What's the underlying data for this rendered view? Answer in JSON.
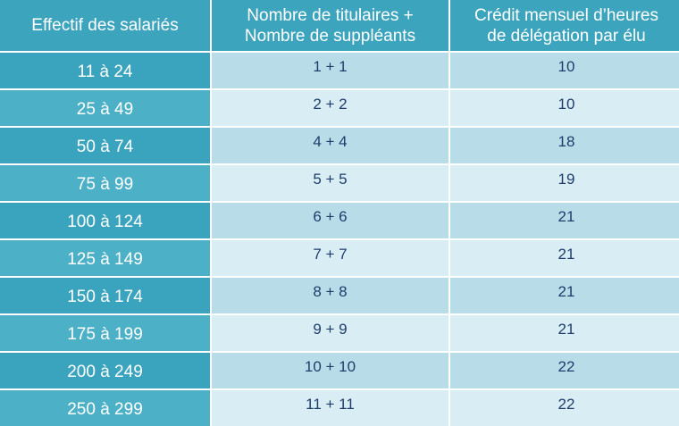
{
  "headers": {
    "col1": "Effectif des salariés",
    "col2_line1": "Nombre de titulaires +",
    "col2_line2": "Nombre de suppléants",
    "col3_line1": "Crédit mensuel d’heures",
    "col3_line2": "de délégation par élu"
  },
  "rows": [
    {
      "effectif": "11 à 24",
      "elus": "1 + 1",
      "heures": "10"
    },
    {
      "effectif": "25 à 49",
      "elus": "2 + 2",
      "heures": "10"
    },
    {
      "effectif": "50 à 74",
      "elus": "4 + 4",
      "heures": "18"
    },
    {
      "effectif": "75 à 99",
      "elus": "5 + 5",
      "heures": "19"
    },
    {
      "effectif": "100 à 124",
      "elus": "6 + 6",
      "heures": "21"
    },
    {
      "effectif": "125 à 149",
      "elus": "7 + 7",
      "heures": "21"
    },
    {
      "effectif": "150 à 174",
      "elus": "8 + 8",
      "heures": "21"
    },
    {
      "effectif": "175 à 199",
      "elus": "9 + 9",
      "heures": "21"
    },
    {
      "effectif": "200 à 249",
      "elus": "10 + 10",
      "heures": "22"
    },
    {
      "effectif": "250 à 299",
      "elus": "11 + 11",
      "heures": "22"
    }
  ],
  "colors": {
    "header_bg": "#3da4be",
    "rowhead_bg": "#3aa3bd",
    "cell_odd_bg": "#b8dde8",
    "cell_even_bg": "#d9eef4",
    "value_text": "#1f3d6b"
  }
}
